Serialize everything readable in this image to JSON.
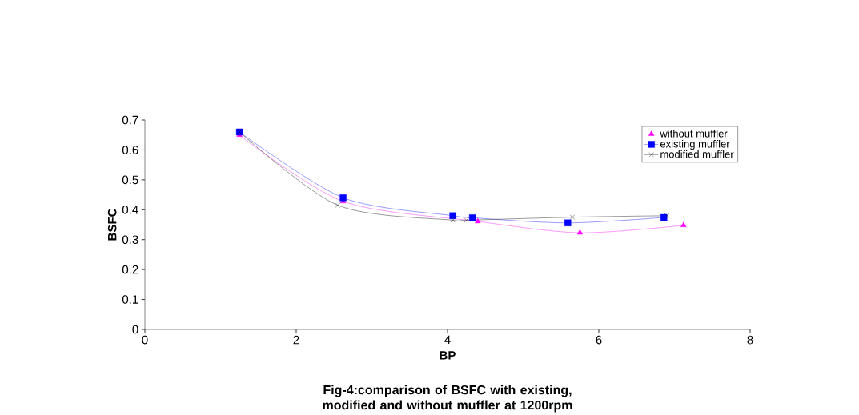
{
  "chart_data": {
    "type": "line",
    "title": "Fig-4:comparison of BSFC with existing, modified and without muffler at 1200rpm",
    "xlabel": "BP",
    "ylabel": "BSFC",
    "xlim": [
      0,
      8
    ],
    "xticks": [
      0,
      2,
      4,
      6,
      8
    ],
    "ylim": [
      0,
      0.7
    ],
    "yticks": [
      0,
      0.1,
      0.2,
      0.3,
      0.4,
      0.5,
      0.6,
      0.7
    ],
    "grid": false,
    "legend": "top right",
    "series": [
      {
        "name": "without muffler",
        "color": "#ff00ff",
        "marker": "triangle",
        "x": [
          1.25,
          2.62,
          4.4,
          5.75,
          7.12
        ],
        "values": [
          0.65,
          0.428,
          0.361,
          0.323,
          0.348
        ]
      },
      {
        "name": "existing muffler",
        "color": "#0000ff",
        "marker": "square",
        "x": [
          1.25,
          2.62,
          4.07,
          4.33,
          5.59,
          6.86
        ],
        "values": [
          0.66,
          0.44,
          0.38,
          0.373,
          0.356,
          0.374
        ]
      },
      {
        "name": "modified muffler",
        "color": "#000000",
        "marker": "cross",
        "x": [
          1.25,
          2.55,
          4.07,
          4.25,
          5.65,
          6.9
        ],
        "values": [
          0.66,
          0.415,
          0.365,
          0.365,
          0.375,
          0.38
        ]
      }
    ]
  }
}
